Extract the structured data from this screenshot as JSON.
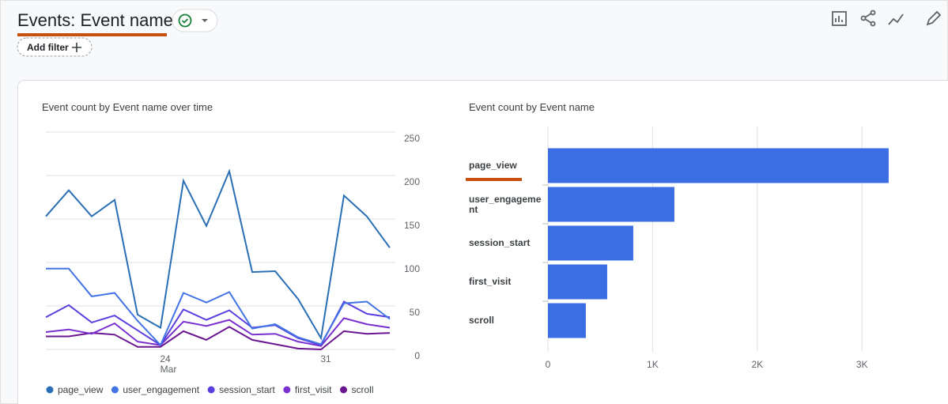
{
  "header": {
    "title": "Events: Event name",
    "filter_button": "Add filter"
  },
  "chart_data": [
    {
      "type": "line",
      "title": "Event count by Event name over time",
      "categories": [
        null,
        null,
        null,
        null,
        null,
        "24",
        null,
        null,
        null,
        null,
        null,
        null,
        "31",
        null,
        null,
        null
      ],
      "month_label": "Mar",
      "series": [
        {
          "name": "page_view",
          "color": "#2a6fb5",
          "values": [
            153,
            183,
            153,
            172,
            40,
            25,
            194,
            142,
            205,
            89,
            90,
            58,
            13,
            177,
            153,
            117
          ]
        },
        {
          "name": "user_engagement",
          "color": "#4274e6",
          "values": [
            93,
            93,
            61,
            65,
            33,
            5,
            65,
            54,
            66,
            24,
            29,
            14,
            6,
            53,
            55,
            35
          ]
        },
        {
          "name": "session_start",
          "color": "#5b3fe0",
          "values": [
            37,
            51,
            31,
            39,
            22,
            5,
            46,
            34,
            45,
            25,
            28,
            13,
            5,
            55,
            41,
            37
          ]
        },
        {
          "name": "first_visit",
          "color": "#7a2fd0",
          "values": [
            20,
            23,
            18,
            30,
            9,
            5,
            32,
            27,
            34,
            17,
            18,
            9,
            4,
            36,
            29,
            25
          ]
        },
        {
          "name": "scroll",
          "color": "#6a1690",
          "values": [
            15,
            15,
            19,
            17,
            3,
            3,
            21,
            11,
            26,
            11,
            6,
            1,
            0,
            21,
            18,
            19
          ]
        }
      ],
      "ylim": [
        0,
        250
      ],
      "yticks": [
        0,
        50,
        100,
        150,
        200,
        250
      ],
      "grid": true,
      "legend": "bottom"
    },
    {
      "type": "hbar",
      "title": "Event count by Event name",
      "categories": [
        "page_view",
        "user_engagement",
        "session_start",
        "first_visit",
        "scroll"
      ],
      "values": [
        3255,
        1208,
        815,
        566,
        362
      ],
      "color": "#3b6de3",
      "xlim": [
        0,
        3300
      ],
      "xticks": [
        0,
        {
          "value": 1000,
          "label": "1K"
        },
        {
          "value": 2000,
          "label": "2K"
        },
        {
          "value": 3000,
          "label": "3K"
        }
      ],
      "grid": true
    }
  ]
}
